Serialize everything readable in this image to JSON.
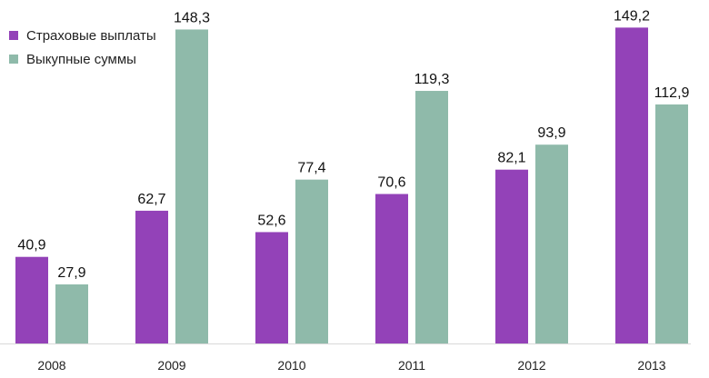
{
  "chart_data": {
    "type": "bar",
    "categories": [
      "2008",
      "2009",
      "2010",
      "2011",
      "2012",
      "2013"
    ],
    "series": [
      {
        "name": "Страховые выплаты",
        "color": "#9342b8",
        "values": [
          40.9,
          62.7,
          52.6,
          70.6,
          82.1,
          149.2
        ],
        "labels": [
          "40,9",
          "62,7",
          "52,6",
          "70,6",
          "82,1",
          "149,2"
        ]
      },
      {
        "name": "Выкупные суммы",
        "color": "#8fbaaa",
        "values": [
          27.9,
          148.3,
          77.4,
          119.3,
          93.9,
          112.9
        ],
        "labels": [
          "27,9",
          "148,3",
          "77,4",
          "119,3",
          "93,9",
          "112,9"
        ]
      }
    ],
    "title": "",
    "xlabel": "",
    "ylabel": "",
    "ylim": [
      0,
      150
    ],
    "grid": false,
    "legend_position": "top-left"
  }
}
